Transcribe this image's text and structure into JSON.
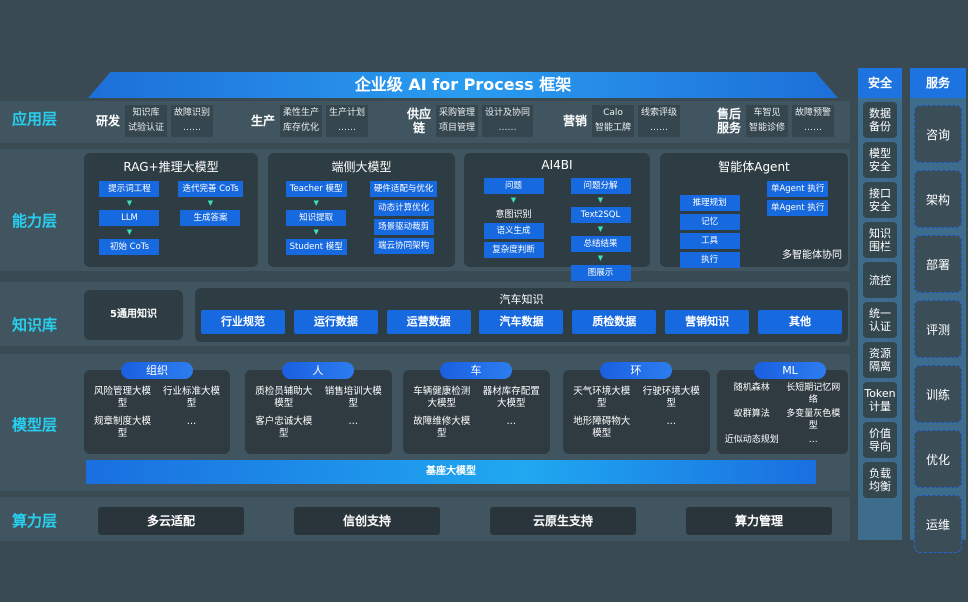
{
  "title": "企业级 AI for Process 框架",
  "layers": {
    "app": "应用层",
    "capability": "能力层",
    "knowledge": "知识库",
    "model": "模型层",
    "compute": "算力层"
  },
  "app_groups": [
    {
      "label": "研发",
      "cols": [
        [
          "知识库",
          "试验认证"
        ],
        [
          "故障识别",
          "……"
        ]
      ]
    },
    {
      "label": "生产",
      "cols": [
        [
          "柔性生产",
          "库存优化"
        ],
        [
          "生产计划",
          "……"
        ]
      ]
    },
    {
      "label": "供应链",
      "cols": [
        [
          "采购管理",
          "项目管理"
        ],
        [
          "设计及协同",
          "……"
        ]
      ]
    },
    {
      "label": "营销",
      "cols": [
        [
          "Calo",
          "智能工牌"
        ],
        [
          "线索评级",
          "……"
        ]
      ]
    },
    {
      "label": "售后服务",
      "cols": [
        [
          "车智见",
          "智能诊修"
        ],
        [
          "故障预警",
          "……"
        ]
      ]
    }
  ],
  "capabilities": [
    {
      "title": "RAG+推理大模型",
      "cols": [
        [
          {
            "t": "提示词工程"
          },
          {
            "t": "LLM"
          },
          {
            "t": "初始 CoTs"
          }
        ],
        [
          {
            "t": "迭代完善 CoTs"
          },
          {
            "t": "生成答案"
          }
        ]
      ]
    },
    {
      "title": "端侧大模型",
      "cols": [
        [
          {
            "t": "Teacher 模型"
          },
          {
            "t": "知识提取"
          },
          {
            "t": "Student 模型"
          }
        ],
        [
          {
            "t": "硬件适配与优化"
          },
          {
            "t": "动态计算优化"
          },
          {
            "t": "场景驱动裁剪"
          },
          {
            "t": "端云协同架构"
          }
        ]
      ]
    },
    {
      "title": "AI4BI",
      "cols": [
        [
          {
            "t": "问题"
          },
          {
            "t": "意图识别",
            "plain": true
          },
          {
            "t": "语义生成"
          },
          {
            "t": "复杂度判断"
          }
        ],
        [
          {
            "t": "问题分解"
          },
          {
            "t": "Text2SQL"
          },
          {
            "t": "总结结果"
          },
          {
            "t": "图展示"
          }
        ]
      ]
    },
    {
      "title": "智能体Agent",
      "cols": [
        [
          {
            "t": "推理规划"
          },
          {
            "t": "记忆"
          },
          {
            "t": "工具"
          },
          {
            "t": "执行"
          }
        ],
        [
          {
            "t": "单Agent 执行"
          },
          {
            "t": "单Agent 执行"
          }
        ]
      ],
      "caption": "多智能体协同"
    }
  ],
  "knowledge": {
    "general": "5通用知识",
    "auto_title": "汽车知识",
    "items": [
      "行业规范",
      "运行数据",
      "运营数据",
      "汽车数据",
      "质检数据",
      "营销知识",
      "其他"
    ]
  },
  "models": [
    {
      "tab": "组织",
      "items": [
        "风险管理大模型",
        "行业标准大模型",
        "规章制度大模型",
        "…"
      ]
    },
    {
      "tab": "人",
      "items": [
        "质检员辅助大模型",
        "销售培训大模型",
        "客户忠诚大模型",
        "…"
      ]
    },
    {
      "tab": "车",
      "items": [
        "车辆健康检测大模型",
        "器材库存配置大模型",
        "故障维修大模型",
        "…"
      ]
    },
    {
      "tab": "环",
      "items": [
        "天气环境大模型",
        "行驶环境大模型",
        "地形障碍物大模型",
        "…"
      ]
    },
    {
      "tab": "ML",
      "items": [
        "随机森林",
        "长短期记忆网络",
        "蚁群算法",
        "多变量灰色模型",
        "近似动态规划",
        "…"
      ]
    }
  ],
  "base_model": "基座大模型",
  "compute": [
    "多云适配",
    "信创支持",
    "云原生支持",
    "算力管理"
  ],
  "security": {
    "title": "安全",
    "items": [
      "数据备份",
      "模型安全",
      "接口安全",
      "知识围栏",
      "流控",
      "统一认证",
      "资源隔离",
      "Token计量",
      "价值导向",
      "负载均衡"
    ]
  },
  "services": {
    "title": "服务",
    "items": [
      "咨询",
      "架构",
      "部署",
      "评测",
      "训练",
      "优化",
      "运维"
    ]
  },
  "colors": {
    "accent": "#1769e0",
    "label": "#27d0f0",
    "background": "#394a52"
  }
}
